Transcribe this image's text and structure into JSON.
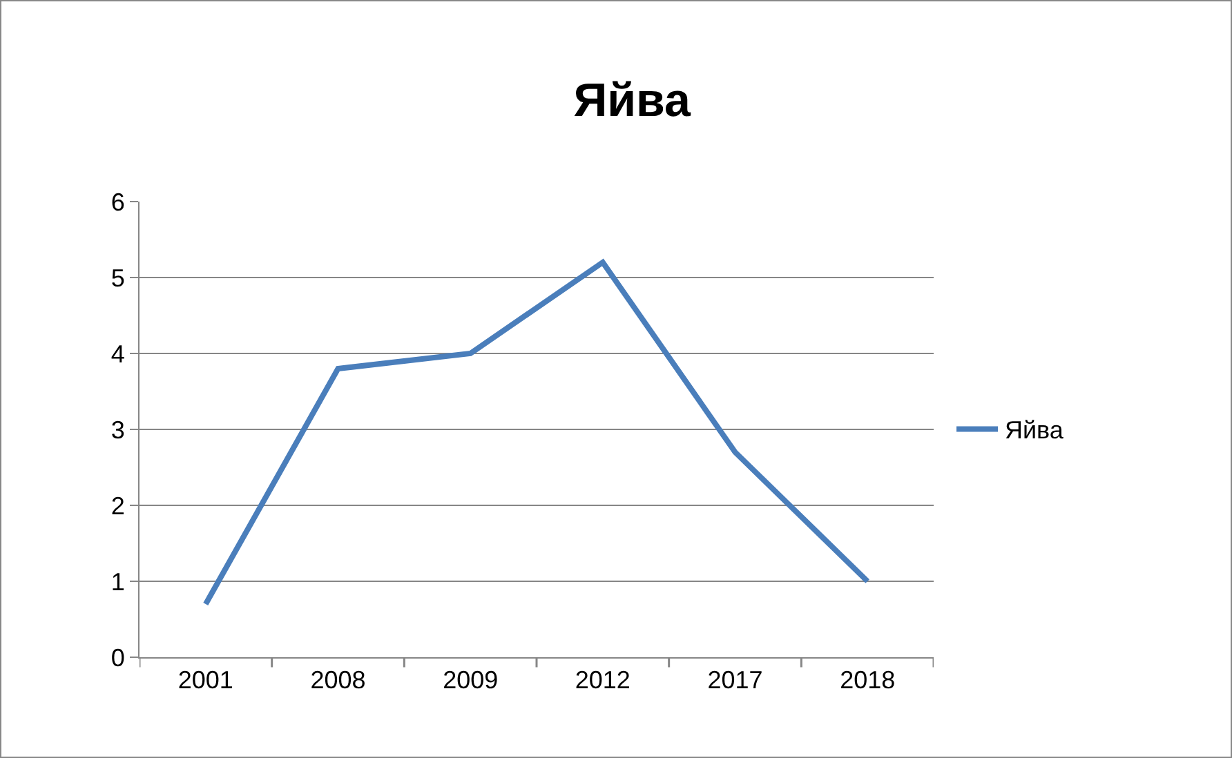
{
  "chart_data": {
    "type": "line",
    "title": "Яйва",
    "categories": [
      "2001",
      "2008",
      "2009",
      "2012",
      "2017",
      "2018"
    ],
    "series": [
      {
        "name": "Яйва",
        "color": "#4a7ebb",
        "values": [
          0.7,
          3.8,
          4.0,
          5.2,
          2.7,
          1.0
        ]
      }
    ],
    "ylim": [
      0,
      6
    ],
    "yticks": [
      0,
      1,
      2,
      3,
      4,
      5,
      6
    ],
    "grid": "y",
    "legend": "right",
    "marker": "none",
    "line_style": "solid"
  }
}
